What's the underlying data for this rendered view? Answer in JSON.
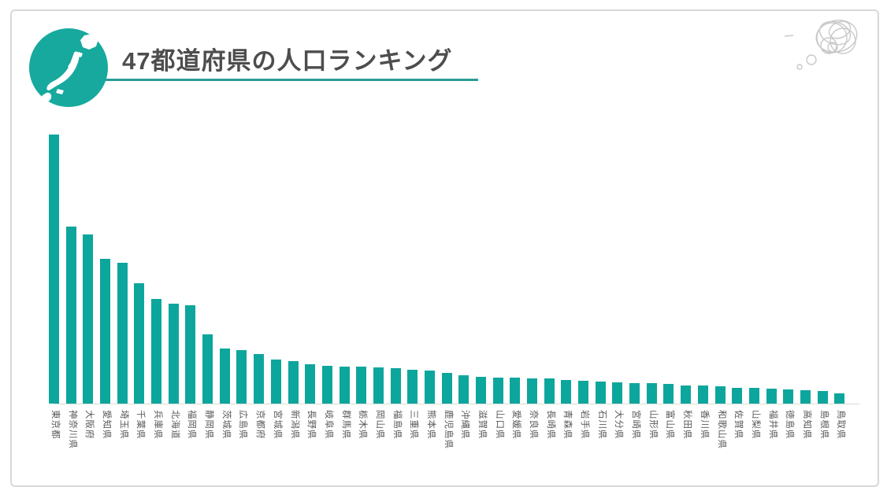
{
  "header": {
    "title": "47都道府県の人口ランキング"
  },
  "theme": {
    "accent": "#17a99e",
    "underline": "#2a9d96",
    "title_color": "#4d4d4d",
    "bar_color": "#0da69c",
    "axis_color": "#d9d9d9",
    "label_color": "#595959",
    "scribble_color": "#c9c9c9"
  },
  "icons": {
    "header_icon": "japan-map-icon",
    "corner_doodle": "scribble-thought-bubble-icon"
  },
  "chart_data": {
    "type": "bar",
    "title": "47都道府県の人口ランキング",
    "xlabel": "",
    "ylabel": "",
    "unit": "million people (estimated from bar heights, no value labels shown)",
    "grid": false,
    "legend": false,
    "ylim": [
      0,
      14.5
    ],
    "categories": [
      "東京都",
      "神奈川県",
      "大阪府",
      "愛知県",
      "埼玉県",
      "千葉県",
      "兵庫県",
      "北海道",
      "福岡県",
      "静岡県",
      "茨城県",
      "広島県",
      "京都府",
      "宮城県",
      "新潟県",
      "長野県",
      "岐阜県",
      "群馬県",
      "栃木県",
      "岡山県",
      "福島県",
      "三重県",
      "熊本県",
      "鹿児島県",
      "沖縄県",
      "滋賀県",
      "山口県",
      "愛媛県",
      "奈良県",
      "長崎県",
      "青森県",
      "岩手県",
      "石川県",
      "大分県",
      "宮崎県",
      "山形県",
      "富山県",
      "秋田県",
      "香川県",
      "和歌山県",
      "佐賀県",
      "山梨県",
      "福井県",
      "徳島県",
      "高知県",
      "島根県",
      "鳥取県"
    ],
    "values": [
      14.05,
      9.24,
      8.84,
      7.54,
      7.34,
      6.28,
      5.47,
      5.22,
      5.14,
      3.63,
      2.87,
      2.8,
      2.58,
      2.3,
      2.2,
      2.05,
      1.98,
      1.94,
      1.93,
      1.89,
      1.83,
      1.77,
      1.74,
      1.59,
      1.47,
      1.41,
      1.34,
      1.34,
      1.32,
      1.31,
      1.24,
      1.21,
      1.13,
      1.12,
      1.07,
      1.07,
      1.04,
      0.96,
      0.95,
      0.92,
      0.81,
      0.81,
      0.77,
      0.72,
      0.69,
      0.67,
      0.55
    ]
  }
}
